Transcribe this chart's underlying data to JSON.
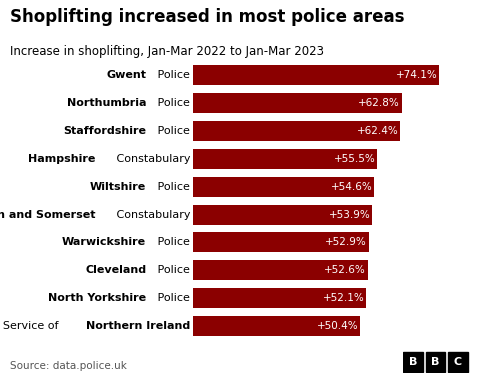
{
  "title": "Shoplifting increased in most police areas",
  "subtitle": "Increase in shoplifting, Jan-Mar 2022 to Jan-Mar 2023",
  "source": "Source: data.police.uk",
  "bar_color": "#8B0000",
  "background_color": "#ffffff",
  "text_color": "#000000",
  "value_text_color": "#ffffff",
  "label_configs": [
    [
      "",
      "Gwent",
      " Police"
    ],
    [
      "",
      "Northumbria",
      " Police"
    ],
    [
      "",
      "Staffordshire",
      " Police"
    ],
    [
      "",
      "Hampshire",
      " Constabulary"
    ],
    [
      "",
      "Wiltshire",
      " Police"
    ],
    [
      "",
      "Avon and Somerset",
      " Constabulary"
    ],
    [
      "",
      "Warwickshire",
      " Police"
    ],
    [
      "",
      "Cleveland",
      " Police"
    ],
    [
      "",
      "North Yorkshire",
      " Police"
    ],
    [
      "Police Service of ",
      "Northern Ireland",
      ""
    ]
  ],
  "values": [
    74.1,
    62.8,
    62.4,
    55.5,
    54.6,
    53.9,
    52.9,
    52.6,
    52.1,
    50.4
  ],
  "value_labels": [
    "+74.1%",
    "+62.8%",
    "+62.4%",
    "+55.5%",
    "+54.6%",
    "+53.9%",
    "+52.9%",
    "+52.6%",
    "+52.1%",
    "+50.4%"
  ],
  "bar_height": 0.72,
  "label_fontsize": 8.0,
  "value_fontsize": 7.5,
  "title_fontsize": 12,
  "subtitle_fontsize": 8.5,
  "source_fontsize": 7.5,
  "figsize": [
    4.8,
    3.75
  ],
  "dpi": 100
}
